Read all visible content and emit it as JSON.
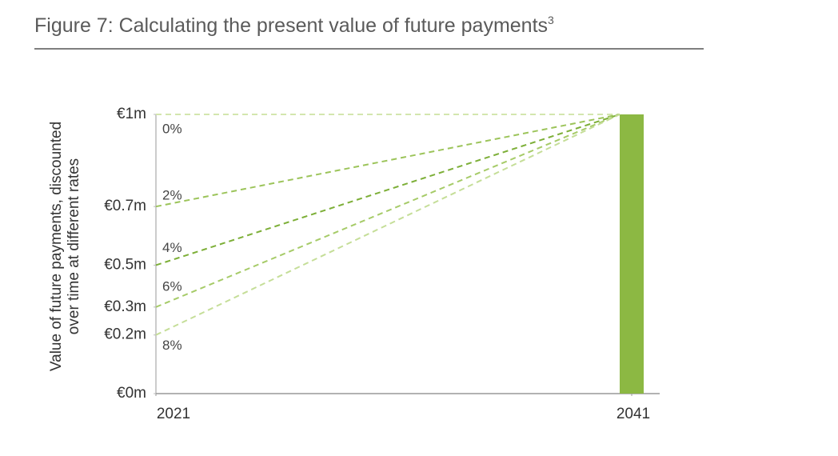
{
  "chart_data": {
    "type": "line",
    "title": "Figure 7: Calculating the present value of future payments",
    "title_note": "3",
    "y_label": [
      "Value of future payments, discounted",
      "over time at different rates"
    ],
    "x": [
      2021,
      2041
    ],
    "xlim": [
      2021,
      2041
    ],
    "xticks": [
      2021,
      2041
    ],
    "ylim": [
      0,
      1
    ],
    "yticks": [
      {
        "value": 0,
        "label": "€0m"
      },
      {
        "value": 0.21,
        "label": "€0.2m"
      },
      {
        "value": 0.31,
        "label": "€0.3m"
      },
      {
        "value": 0.46,
        "label": "€0.5m"
      },
      {
        "value": 0.67,
        "label": "€0.7m"
      },
      {
        "value": 1,
        "label": "€1m"
      }
    ],
    "series": [
      {
        "name": "0%",
        "color": "#d3e6ae",
        "values": [
          1,
          1
        ]
      },
      {
        "name": "2%",
        "color": "#9cc45a",
        "values": [
          0.67,
          1
        ]
      },
      {
        "name": "4%",
        "color": "#7daf38",
        "values": [
          0.46,
          1
        ]
      },
      {
        "name": "6%",
        "color": "#a6cb68",
        "values": [
          0.31,
          1
        ]
      },
      {
        "name": "8%",
        "color": "#c5de98",
        "values": [
          0.21,
          1
        ]
      }
    ],
    "bar": {
      "x": 2041,
      "value": 1,
      "color": "#8cb843"
    }
  }
}
